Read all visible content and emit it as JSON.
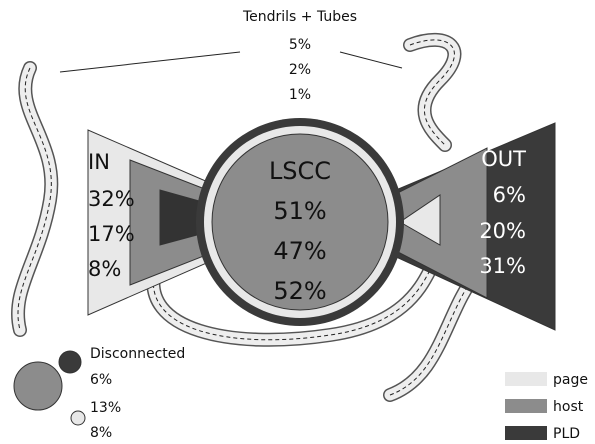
{
  "tendrils": {
    "label": "Tendrils + Tubes",
    "values": [
      "5%",
      "2%",
      "1%"
    ]
  },
  "in": {
    "label": "IN",
    "values": [
      "32%",
      "17%",
      "8%"
    ]
  },
  "lscc": {
    "label": "LSCC",
    "values": [
      "51%",
      "47%",
      "52%"
    ]
  },
  "out": {
    "label": "OUT",
    "values": [
      "6%",
      "20%",
      "31%"
    ]
  },
  "disconnected": {
    "label": "Disconnected",
    "values": [
      "6%",
      "13%",
      "8%"
    ]
  },
  "legend": [
    "page",
    "host",
    "PLD"
  ]
}
